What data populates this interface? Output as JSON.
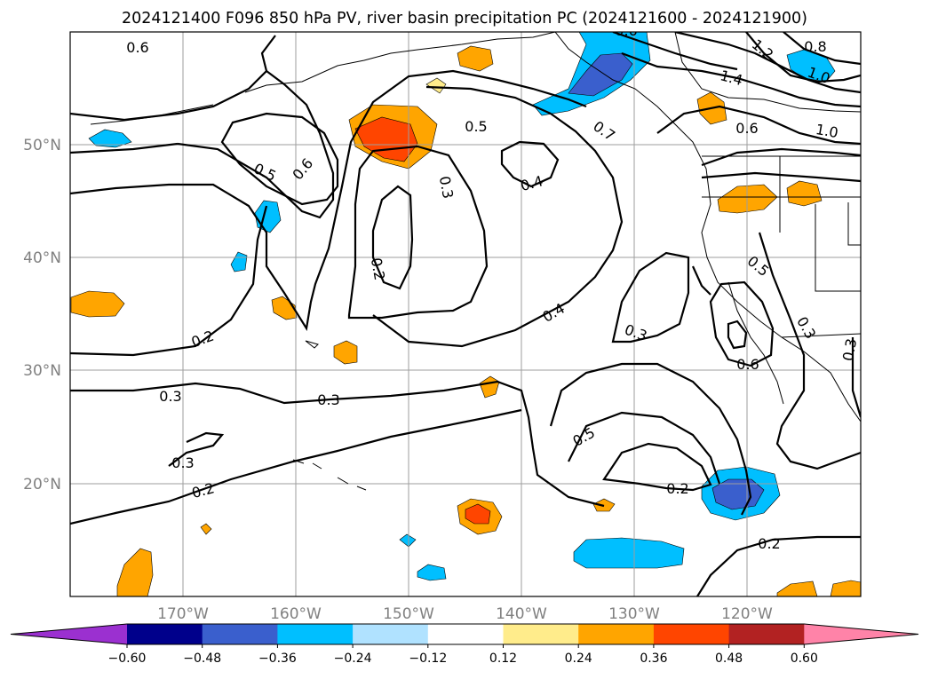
{
  "title": "2024121400 F096 850 hPa PV, river basin precipitation PC (2024121600 - 2024121900)",
  "map": {
    "lat_labels": [
      "50°N",
      "40°N",
      "30°N",
      "20°N"
    ],
    "lon_labels": [
      "170°W",
      "160°W",
      "150°W",
      "140°W",
      "130°W",
      "120°W"
    ],
    "pv_contour_labels": [
      "0.6",
      "0.5",
      "0.6",
      "0.5",
      "0.7",
      "0.6",
      "0.4",
      "0.3",
      "0.2",
      "0.2",
      "0.3",
      "0.3",
      "0.4",
      "0.3",
      "0.5",
      "0.6",
      "0.5",
      "0.3",
      "0.3",
      "0.2",
      "0.2",
      "0.2",
      "0.8",
      "1.2",
      "1.4",
      "1.0",
      "1.0",
      "0.3",
      "0.6"
    ]
  },
  "colorbar": {
    "colors": [
      "#9b30d0",
      "#00008b",
      "#3a5fcd",
      "#00bfff",
      "#b0e2ff",
      "#ffffff",
      "#ffec8b",
      "#ffa500",
      "#ff4500",
      "#b22222",
      "#ff83a8"
    ],
    "ticks": [
      "−0.60",
      "−0.48",
      "−0.36",
      "−0.24",
      "−0.12",
      "0.12",
      "0.24",
      "0.36",
      "0.48",
      "0.60"
    ]
  }
}
